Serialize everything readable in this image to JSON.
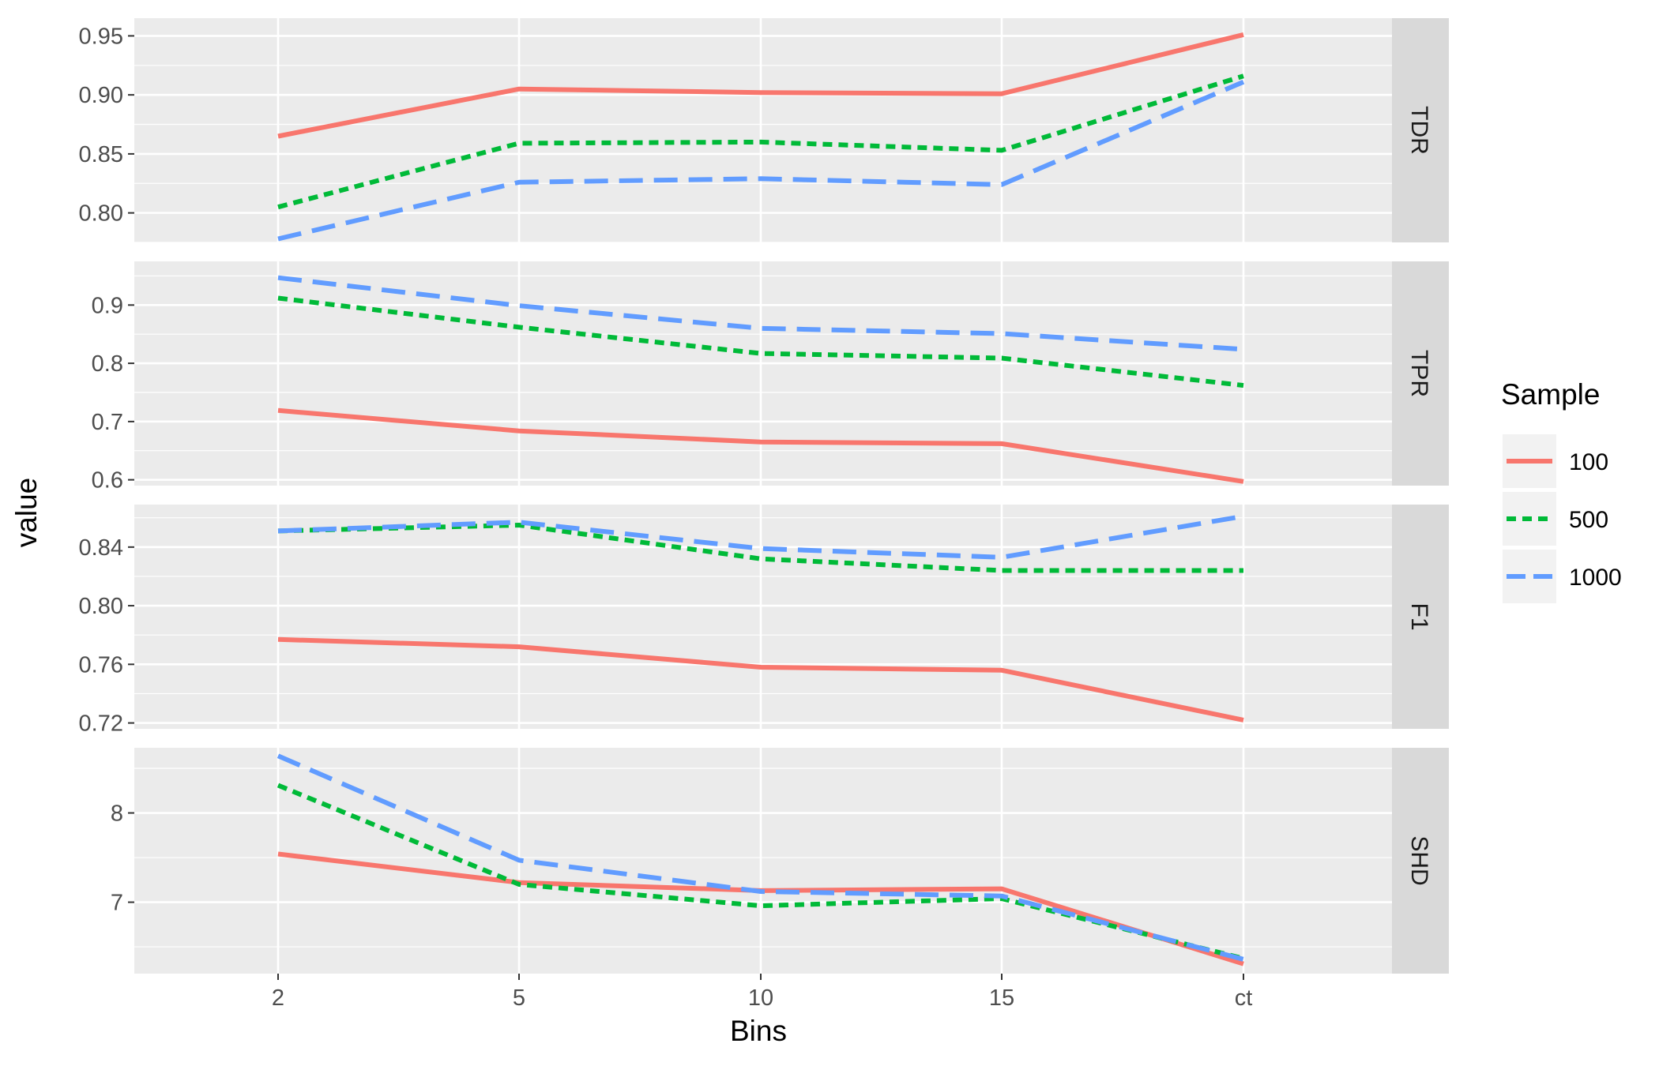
{
  "chart_data": {
    "type": "line",
    "xlabel": "Bins",
    "ylabel": "value",
    "categories": [
      "2",
      "5",
      "10",
      "15",
      "ct"
    ],
    "legend": {
      "title": "Sample",
      "position": "right"
    },
    "series_styles": [
      {
        "name": "100",
        "color": "#F8766D",
        "dash": "solid"
      },
      {
        "name": "500",
        "color": "#00BA38",
        "dash": "dotted"
      },
      {
        "name": "1000",
        "color": "#619CFF",
        "dash": "dashed"
      }
    ],
    "grid": true,
    "facets": [
      {
        "strip": "TDR",
        "ylim": [
          0.775,
          0.965
        ],
        "yticks": [
          0.8,
          0.85,
          0.9,
          0.95
        ],
        "ytick_labels": [
          "0.80",
          "0.85",
          "0.90",
          "0.95"
        ],
        "series": [
          {
            "name": "100",
            "values": [
              0.865,
              0.905,
              0.902,
              0.901,
              0.951
            ]
          },
          {
            "name": "500",
            "values": [
              0.805,
              0.859,
              0.86,
              0.853,
              0.916
            ]
          },
          {
            "name": "1000",
            "values": [
              0.778,
              0.826,
              0.829,
              0.824,
              0.911
            ]
          }
        ]
      },
      {
        "strip": "TPR",
        "ylim": [
          0.59,
          0.975
        ],
        "yticks": [
          0.6,
          0.7,
          0.8,
          0.9
        ],
        "ytick_labels": [
          "0.6",
          "0.7",
          "0.8",
          "0.9"
        ],
        "series": [
          {
            "name": "100",
            "values": [
              0.719,
              0.684,
              0.665,
              0.662,
              0.597
            ]
          },
          {
            "name": "500",
            "values": [
              0.912,
              0.862,
              0.817,
              0.809,
              0.762
            ]
          },
          {
            "name": "1000",
            "values": [
              0.947,
              0.899,
              0.86,
              0.851,
              0.824
            ]
          }
        ]
      },
      {
        "strip": "F1",
        "ylim": [
          0.716,
          0.869
        ],
        "yticks": [
          0.72,
          0.76,
          0.8,
          0.84
        ],
        "ytick_labels": [
          "0.72",
          "0.76",
          "0.80",
          "0.84"
        ],
        "series": [
          {
            "name": "100",
            "values": [
              0.777,
              0.772,
              0.758,
              0.756,
              0.722
            ]
          },
          {
            "name": "500",
            "values": [
              0.851,
              0.855,
              0.832,
              0.824,
              0.824
            ]
          },
          {
            "name": "1000",
            "values": [
              0.851,
              0.857,
              0.839,
              0.833,
              0.861
            ]
          }
        ]
      },
      {
        "strip": "SHD",
        "ylim": [
          6.2,
          8.73
        ],
        "yticks": [
          7,
          8
        ],
        "ytick_labels": [
          "7",
          "8"
        ],
        "series": [
          {
            "name": "100",
            "values": [
              7.54,
              7.22,
              7.13,
              7.15,
              6.31
            ]
          },
          {
            "name": "500",
            "values": [
              8.31,
              7.2,
              6.96,
              7.04,
              6.37
            ]
          },
          {
            "name": "1000",
            "values": [
              8.64,
              7.47,
              7.12,
              7.07,
              6.36
            ]
          }
        ]
      }
    ]
  }
}
